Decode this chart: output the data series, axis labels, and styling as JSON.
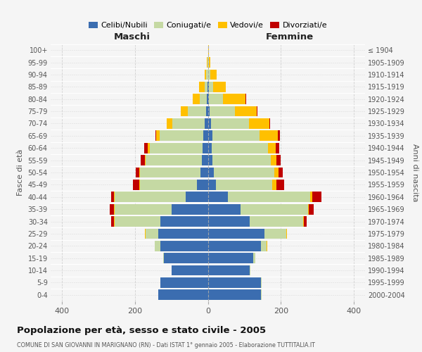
{
  "age_groups": [
    "0-4",
    "5-9",
    "10-14",
    "15-19",
    "20-24",
    "25-29",
    "30-34",
    "35-39",
    "40-44",
    "45-49",
    "50-54",
    "55-59",
    "60-64",
    "65-69",
    "70-74",
    "75-79",
    "80-84",
    "85-89",
    "90-94",
    "95-99",
    "100+"
  ],
  "birth_years": [
    "2000-2004",
    "1995-1999",
    "1990-1994",
    "1985-1989",
    "1980-1984",
    "1975-1979",
    "1970-1974",
    "1965-1969",
    "1960-1964",
    "1955-1959",
    "1950-1954",
    "1945-1949",
    "1940-1944",
    "1935-1939",
    "1930-1934",
    "1925-1929",
    "1920-1924",
    "1915-1919",
    "1910-1914",
    "1905-1909",
    "≤ 1904"
  ],
  "colors": {
    "celibi": "#3b6db0",
    "coniugati": "#c5d9a3",
    "vedovi": "#ffc000",
    "divorziati": "#c00000"
  },
  "males": {
    "celibi": [
      135,
      130,
      100,
      120,
      130,
      135,
      130,
      100,
      60,
      30,
      20,
      16,
      14,
      12,
      8,
      4,
      2,
      1,
      0,
      0,
      0
    ],
    "coniugati": [
      0,
      0,
      0,
      2,
      15,
      35,
      125,
      155,
      195,
      155,
      165,
      155,
      145,
      120,
      90,
      50,
      20,
      8,
      4,
      1,
      0
    ],
    "vedovi": [
      0,
      0,
      0,
      0,
      0,
      2,
      2,
      2,
      2,
      2,
      2,
      2,
      5,
      10,
      15,
      20,
      20,
      15,
      5,
      2,
      0
    ],
    "divorziati": [
      0,
      0,
      0,
      0,
      0,
      0,
      8,
      12,
      8,
      18,
      10,
      10,
      10,
      2,
      0,
      0,
      0,
      0,
      0,
      0,
      0
    ]
  },
  "females": {
    "celibi": [
      145,
      145,
      115,
      125,
      145,
      155,
      115,
      90,
      55,
      22,
      16,
      12,
      10,
      12,
      8,
      4,
      2,
      2,
      1,
      0,
      0
    ],
    "coniugati": [
      2,
      2,
      2,
      4,
      15,
      60,
      145,
      185,
      225,
      155,
      165,
      160,
      155,
      130,
      105,
      70,
      40,
      12,
      6,
      2,
      0
    ],
    "vedovi": [
      0,
      0,
      0,
      0,
      2,
      2,
      2,
      2,
      5,
      10,
      12,
      15,
      20,
      50,
      55,
      60,
      60,
      35,
      18,
      5,
      2
    ],
    "divorziati": [
      0,
      0,
      0,
      0,
      0,
      0,
      8,
      12,
      25,
      22,
      12,
      12,
      10,
      5,
      2,
      2,
      2,
      0,
      0,
      0,
      0
    ]
  },
  "title": "Popolazione per età, sesso e stato civile - 2005",
  "subtitle": "COMUNE DI SAN GIOVANNI IN MARIGNANO (RN) - Dati ISTAT 1° gennaio 2005 - Elaborazione TUTTITALIA.IT",
  "xlabel_left": "Maschi",
  "xlabel_right": "Femmine",
  "ylabel_left": "Fasce di età",
  "ylabel_right": "Anni di nascita",
  "legend_labels": [
    "Celibi/Nubili",
    "Coniugati/e",
    "Vedovi/e",
    "Divorziati/e"
  ],
  "xlim": 430,
  "bg_color": "#f5f5f5",
  "grid_color": "#cccccc",
  "bar_height": 0.85
}
